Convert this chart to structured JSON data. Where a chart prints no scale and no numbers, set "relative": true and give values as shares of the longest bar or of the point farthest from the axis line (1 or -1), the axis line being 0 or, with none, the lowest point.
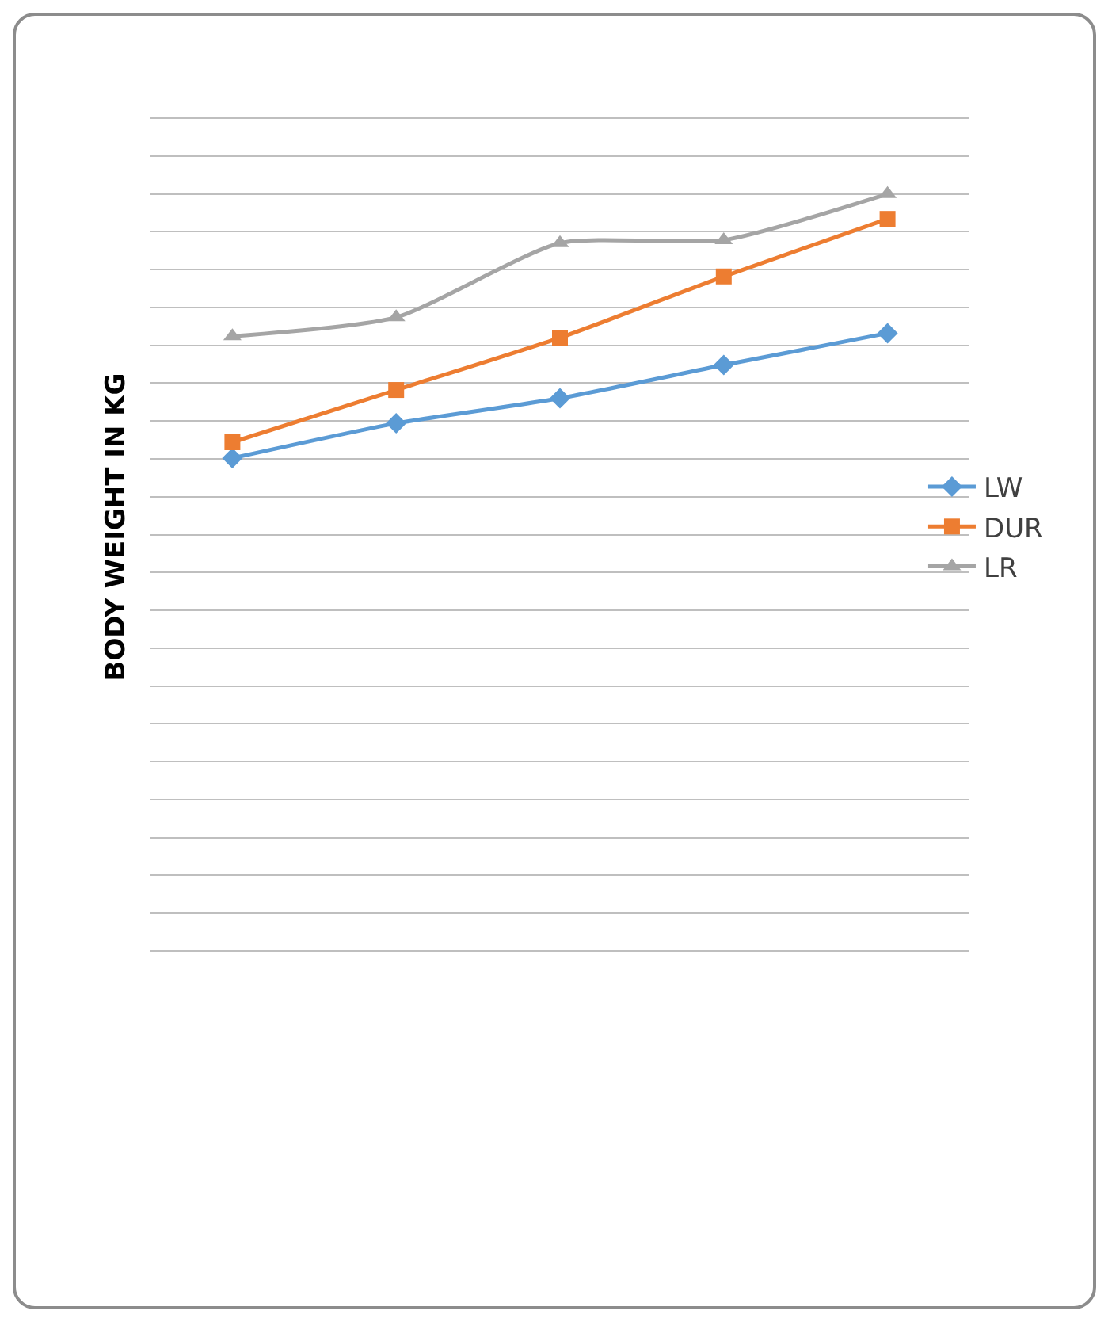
{
  "chart_data": {
    "type": "line",
    "ylabel": "BODY WEIGHT IN KG",
    "relative": true,
    "grid": "y",
    "legend": "right",
    "categories": [
      null,
      null,
      null,
      null,
      null
    ],
    "series": [
      {
        "name": "LW",
        "color": "#5b9bd5",
        "marker": "diamond",
        "values": [
          0.651,
          0.697,
          0.73,
          0.774,
          0.816
        ]
      },
      {
        "name": "DUR",
        "color": "#ed7d31",
        "marker": "square",
        "values": [
          0.672,
          0.741,
          0.81,
          0.891,
          0.967
        ]
      },
      {
        "name": "LR",
        "color": "#a5a5a5",
        "marker": "triangle",
        "values": [
          0.812,
          0.837,
          0.935,
          0.939,
          1
        ]
      }
    ]
  }
}
